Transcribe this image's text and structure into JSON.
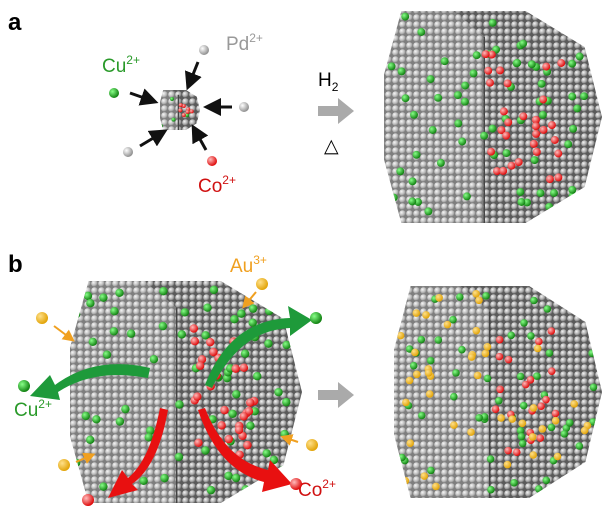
{
  "panel_a": {
    "label": "a",
    "ions": [
      {
        "symbol": "Cu",
        "charge": "2+"
      },
      {
        "symbol": "Pd",
        "charge": "2+"
      },
      {
        "symbol": "Co",
        "charge": "2+"
      }
    ],
    "reagent": {
      "symbol": "H",
      "subscript": "2"
    },
    "condition": "△"
  },
  "panel_b": {
    "label": "b",
    "ions": [
      {
        "symbol": "Au",
        "charge": "3+"
      },
      {
        "symbol": "Cu",
        "charge": "2+"
      },
      {
        "symbol": "Co",
        "charge": "2+"
      }
    ]
  }
}
